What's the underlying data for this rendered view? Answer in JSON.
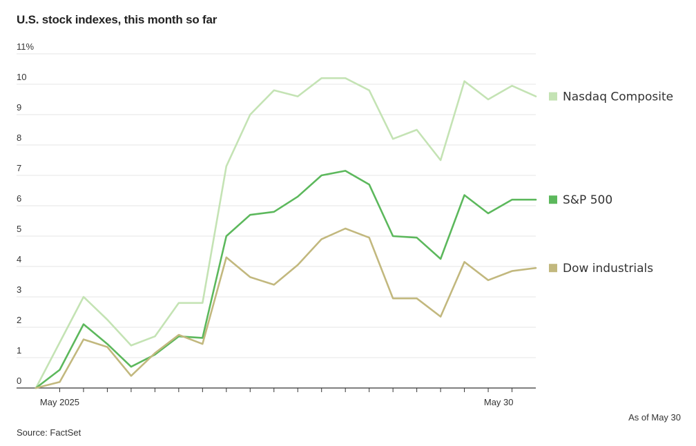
{
  "chart_data": {
    "type": "line",
    "title": "U.S. stock indexes, this month so far",
    "xlabel": "",
    "ylabel": "",
    "ylim": [
      0,
      11
    ],
    "y_ticks": [
      {
        "value": 11,
        "label": "11%"
      },
      {
        "value": 10,
        "label": "10"
      },
      {
        "value": 9,
        "label": "9"
      },
      {
        "value": 8,
        "label": "8"
      },
      {
        "value": 7,
        "label": "7"
      },
      {
        "value": 6,
        "label": "6"
      },
      {
        "value": 5,
        "label": "5"
      },
      {
        "value": 4,
        "label": "4"
      },
      {
        "value": 3,
        "label": "3"
      },
      {
        "value": 2,
        "label": "2"
      },
      {
        "value": 1,
        "label": "1"
      },
      {
        "value": 0,
        "label": "0"
      }
    ],
    "x_tick_count": 21,
    "x_labels": [
      {
        "index": 1,
        "label": "May 2025"
      },
      {
        "index": 20,
        "label": "May 30"
      }
    ],
    "series": [
      {
        "name": "Nasdaq Composite",
        "color": "#c4e3b4",
        "values": [
          0,
          1.5,
          3.0,
          2.25,
          1.4,
          1.7,
          2.8,
          2.8,
          7.3,
          9.0,
          9.8,
          9.6,
          10.2,
          10.2,
          9.8,
          8.2,
          8.5,
          7.5,
          10.1,
          9.5,
          9.95,
          9.6
        ]
      },
      {
        "name": "S&P 500",
        "color": "#5cb85c",
        "values": [
          0,
          0.6,
          2.1,
          1.45,
          0.7,
          1.1,
          1.7,
          1.65,
          5.0,
          5.7,
          5.8,
          6.3,
          7.0,
          7.15,
          6.7,
          5.0,
          4.95,
          4.25,
          6.35,
          5.75,
          6.2,
          6.2
        ]
      },
      {
        "name": "Dow industrials",
        "color": "#c2b87e",
        "values": [
          0,
          0.2,
          1.6,
          1.35,
          0.4,
          1.15,
          1.75,
          1.45,
          4.3,
          3.65,
          3.4,
          4.05,
          4.9,
          5.25,
          4.95,
          2.95,
          2.95,
          2.35,
          4.15,
          3.55,
          3.85,
          3.95
        ]
      }
    ],
    "as_of": "As of May 30",
    "source": "Source: FactSet"
  }
}
